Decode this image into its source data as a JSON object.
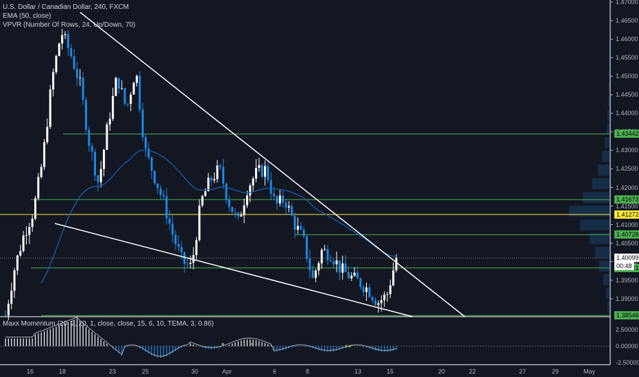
{
  "legend": {
    "title": "U.S. Dollar / Canadian Dollar, 240, FXCM",
    "ema": "EMA (50, close)",
    "vpvr": "VPVR (Number Of Rows, 24, Up/Down, 70)"
  },
  "oscillator": {
    "label": "Maxx Momentum (20, 2, 20, 1, close, close, 15, 6, 10, TEMA, 3, 0.86)",
    "axis_labels": [
      "5.00000",
      "2.50000",
      "0.00000",
      "-2.50000"
    ]
  },
  "price_axis": {
    "ticks": [
      "1.47000",
      "1.46500",
      "1.46000",
      "1.45500",
      "1.45000",
      "1.44500",
      "1.44000",
      "1.43500",
      "1.43000",
      "1.42500",
      "1.42000",
      "1.41500",
      "1.41000",
      "1.40500",
      "1.40000",
      "1.39500",
      "1.39000",
      "1.38500"
    ]
  },
  "time_axis": {
    "ticks": [
      "16",
      "18",
      "23",
      "25",
      "30",
      "Apr",
      "6",
      "8",
      "13",
      "15",
      "20",
      "22",
      "27",
      "29",
      "May"
    ]
  },
  "price_tags": {
    "green": [
      "1.43442",
      "1.41673",
      "1.40728",
      "1.39831",
      "1.38546"
    ],
    "yellow": "1.41272",
    "current": "1.40099",
    "countdown": "00:48"
  },
  "colors": {
    "background": "#131722",
    "bull": "#ffffff",
    "bear": "#1e88e5",
    "ema": "#1565c0",
    "support_line": "#4caf50",
    "yellow_line": "#ffeb3b",
    "trendline": "#ffffff"
  },
  "chart_data": {
    "type": "candlestick",
    "symbol": "USD/CAD",
    "interval": "240",
    "price_range": [
      1.383,
      1.47
    ],
    "horizontal_levels": [
      1.43442,
      1.41673,
      1.41272,
      1.40728,
      1.39831,
      1.38546
    ],
    "current_price": 1.40099,
    "trendlines": [
      {
        "from": {
          "x": "19 Mar",
          "y": 1.4665
        },
        "to": {
          "x": "20 Apr",
          "y": 1.382
        }
      },
      {
        "from": {
          "x": "17 Mar",
          "y": 1.4095
        },
        "to": {
          "x": "16 Apr",
          "y": 1.383
        }
      }
    ],
    "path": [
      1.3855,
      1.3985,
      1.4075,
      1.4135,
      1.4275,
      1.449,
      1.462,
      1.456,
      1.448,
      1.432,
      1.421,
      1.437,
      1.45,
      1.441,
      1.452,
      1.43,
      1.423,
      1.416,
      1.407,
      1.4,
      1.3985,
      1.416,
      1.422,
      1.425,
      1.416,
      1.4105,
      1.42,
      1.424,
      1.425,
      1.415,
      1.417,
      1.4105,
      1.406,
      1.395,
      1.403,
      1.402,
      1.398,
      1.396,
      1.3945,
      1.3925,
      1.389,
      1.391,
      1.401
    ]
  }
}
